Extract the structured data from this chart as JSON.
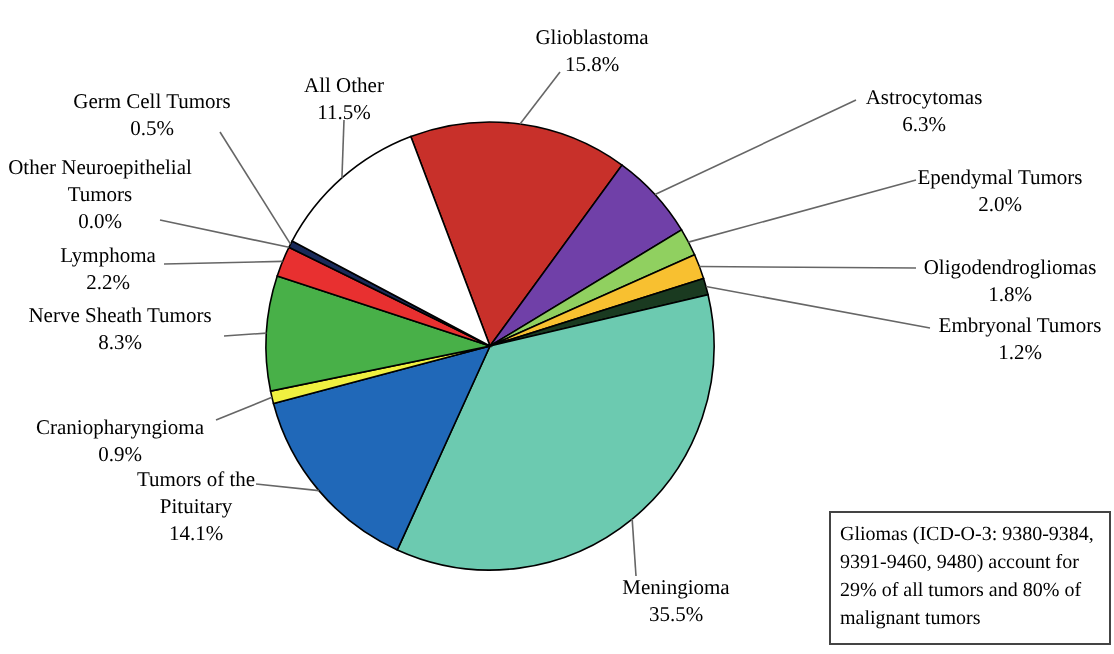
{
  "chart_data": {
    "type": "pie",
    "categories": [
      "Glioblastoma",
      "Astrocytomas",
      "Ependymal Tumors",
      "Oligodendrogliomas",
      "Embryonal Tumors",
      "Meningioma",
      "Tumors of the Pituitary",
      "Craniopharyngioma",
      "Nerve Sheath Tumors",
      "Lymphoma",
      "Other Neuroepithelial Tumors",
      "Germ Cell Tumors",
      "All Other"
    ],
    "values": [
      15.8,
      6.3,
      2.0,
      1.8,
      1.2,
      35.5,
      14.1,
      0.9,
      8.3,
      2.2,
      0.0,
      0.5,
      11.5
    ],
    "value_labels": [
      "15.8%",
      "6.3%",
      "2.0%",
      "1.8%",
      "1.2%",
      "35.5%",
      "14.1%",
      "0.9%",
      "8.3%",
      "2.2%",
      "0.0%",
      "0.5%",
      "11.5%"
    ],
    "colors": [
      "#c8302a",
      "#7040a8",
      "#90d060",
      "#f8c030",
      "#1a3a20",
      "#6ccab0",
      "#2068b8",
      "#f0f040",
      "#48b048",
      "#e83030",
      "#303080",
      "#1a2a5a",
      "#ffffff"
    ],
    "annotations": [
      "Gliomas (ICD-O-3: 9380-9384, 9391-9460, 9480) account for 29% of all tumors and 80% of malignant tumors"
    ]
  }
}
